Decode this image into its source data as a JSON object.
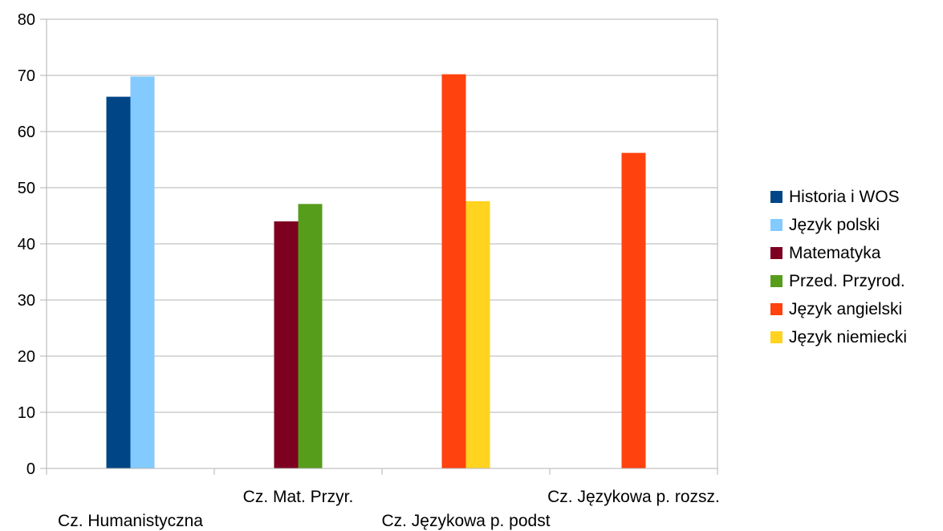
{
  "chart_data": {
    "type": "bar",
    "categories": [
      "Cz. Humanistyczna",
      "Cz. Mat. Przyr.",
      "Cz. Językowa p. podst",
      "Cz. Językowa p. rozsz."
    ],
    "series": [
      {
        "name": "Historia i WOS",
        "color": "#004586",
        "values": [
          66.2,
          null,
          null,
          null
        ]
      },
      {
        "name": "Język polski",
        "color": "#83caff",
        "values": [
          69.8,
          null,
          null,
          null
        ]
      },
      {
        "name": "Matematyka",
        "color": "#7e0021",
        "values": [
          null,
          44.0,
          null,
          null
        ]
      },
      {
        "name": "Przed. Przyrod.",
        "color": "#579d1c",
        "values": [
          null,
          47.1,
          null,
          null
        ]
      },
      {
        "name": "Język angielski",
        "color": "#ff420e",
        "values": [
          null,
          null,
          70.2,
          56.2
        ]
      },
      {
        "name": "Język niemiecki",
        "color": "#ffd320",
        "values": [
          null,
          null,
          47.6,
          null
        ]
      }
    ],
    "ylim": [
      0,
      80
    ],
    "yticks": [
      "0",
      "10",
      "20",
      "30",
      "40",
      "50",
      "60",
      "70",
      "80"
    ],
    "grid": true,
    "legend_position": "right"
  }
}
